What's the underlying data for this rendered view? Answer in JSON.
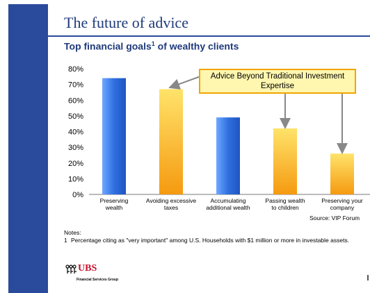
{
  "slide": {
    "title": "The future of advice",
    "subtitle": "Top financial goals",
    "subtitle_sup": "1",
    "subtitle_rest": " of wealthy clients",
    "source": "Source: VIP Forum",
    "notes_label": "Notes:",
    "note_number": "1",
    "note_text": "Percentage citing as \"very important\" among U.S. Households with $1 million or more in investable assets.",
    "logo_text": "UBS",
    "logo_subtext": "Financial Services Group"
  },
  "callout": {
    "text": "Advice Beyond Traditional Investment Expertise"
  },
  "colors": {
    "brand_blue": "#2a4a9c",
    "bar_blue": "#3a7be0",
    "bar_orange": "#f5a623",
    "callout_border": "#f0a500",
    "arrow": "#888888"
  },
  "chart_data": {
    "type": "bar",
    "categories": [
      [
        "Preserving",
        "wealth"
      ],
      [
        "Avoiding excessive",
        "taxes"
      ],
      [
        "Accumulating",
        "additional wealth"
      ],
      [
        "Passing wealth",
        "to children"
      ],
      [
        "Preserving your",
        "company"
      ]
    ],
    "values": [
      74,
      67,
      49,
      42,
      26
    ],
    "bar_colors": [
      "blue",
      "orange",
      "blue",
      "orange",
      "orange"
    ],
    "highlighted": [
      false,
      true,
      false,
      true,
      true
    ],
    "ylim": [
      0,
      80
    ],
    "yticks": [
      "0%",
      "10%",
      "20%",
      "30%",
      "40%",
      "50%",
      "60%",
      "70%",
      "80%"
    ],
    "xlabel": "",
    "ylabel": "",
    "grid": false
  }
}
